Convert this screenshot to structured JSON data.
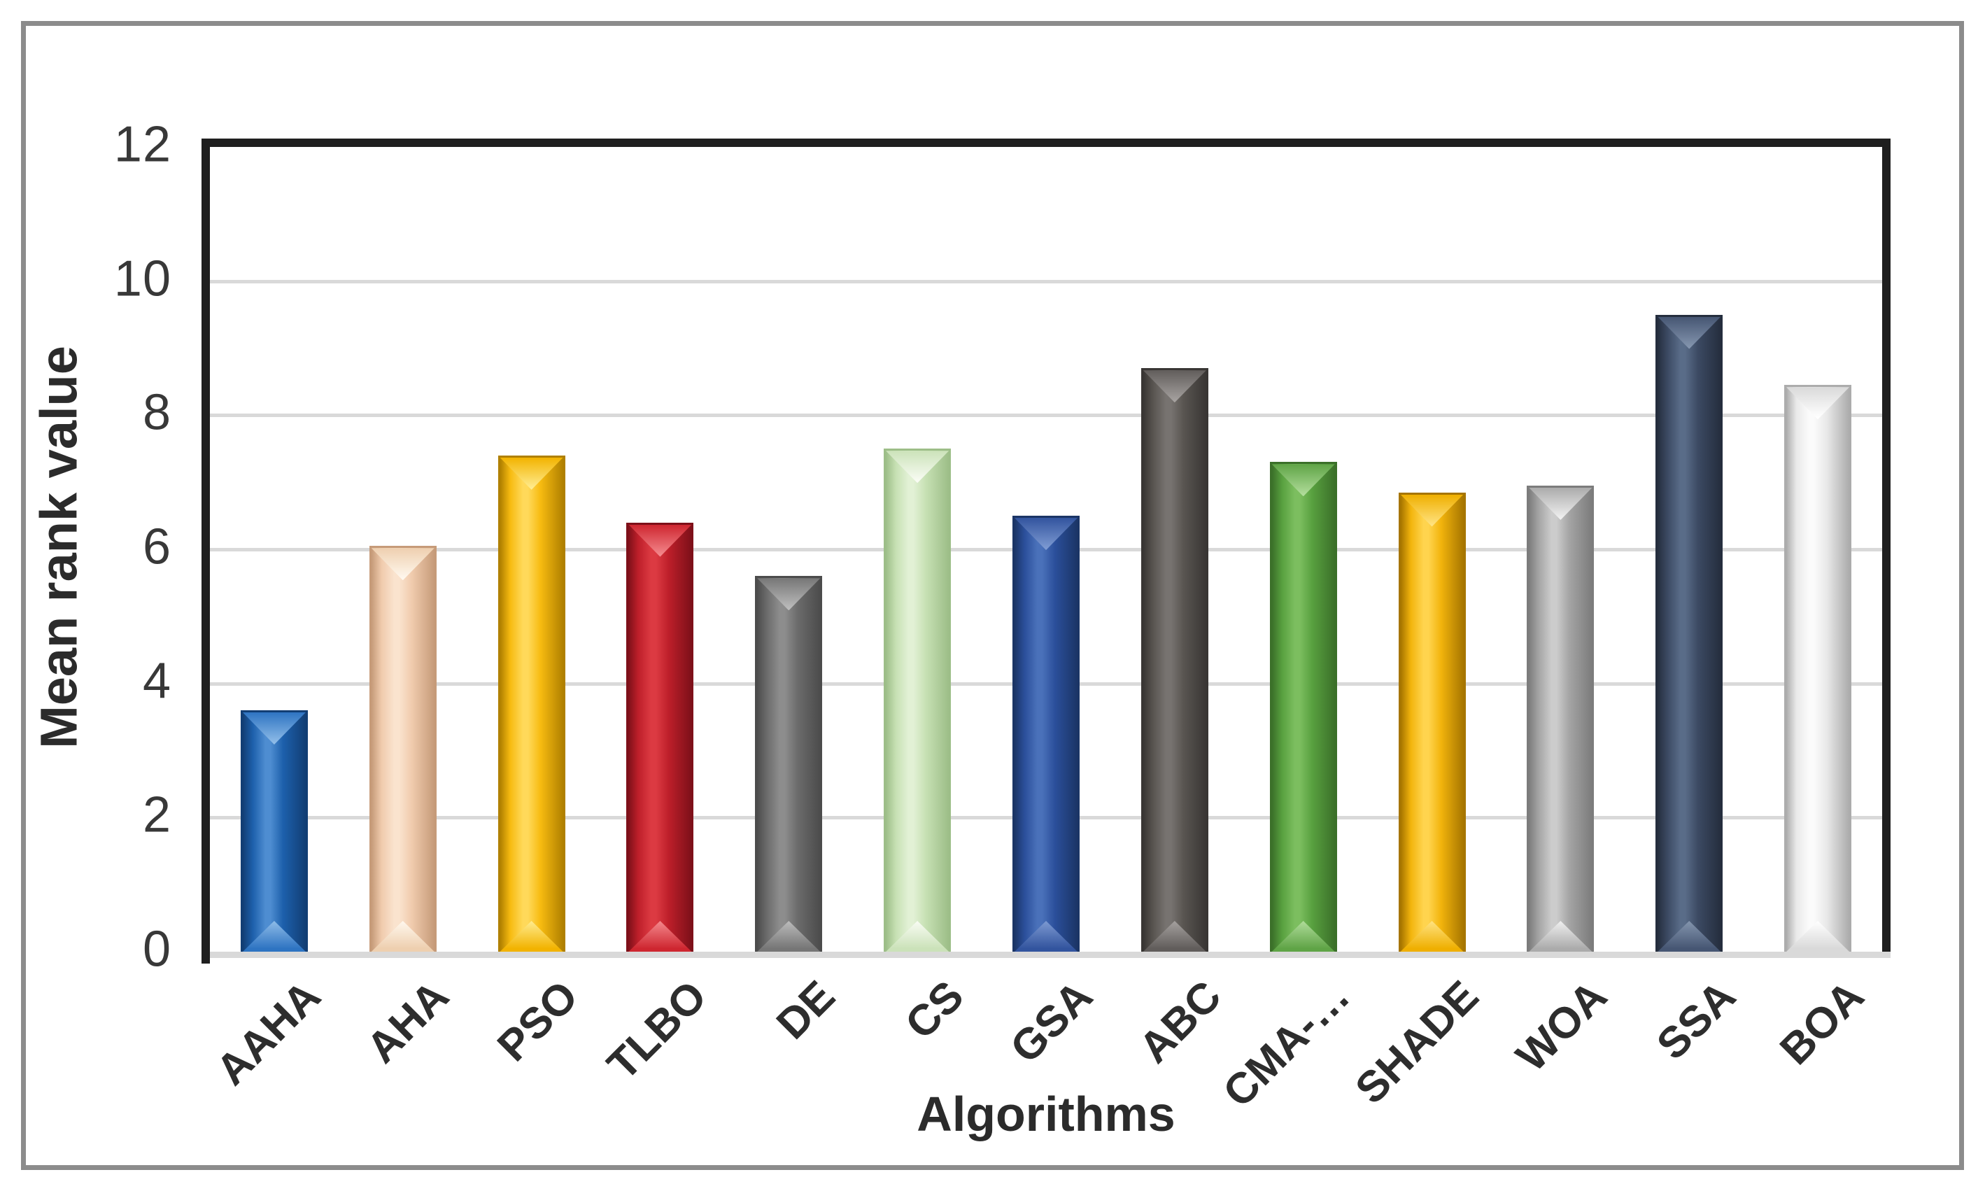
{
  "figure": {
    "background": "#FFFFFF",
    "frame_color": "#8C8C8C",
    "plot_border_color": "#1F1F1F",
    "gridline_color": "#D9D9D9",
    "baseline_color": "#D9D9D9",
    "tick_text_color": "#383838",
    "title_text_color": "#2B2B2B"
  },
  "chart_data": {
    "type": "bar",
    "title": "",
    "xlabel": "Algorithms",
    "ylabel": "Mean rank value",
    "categories": [
      "AAHA",
      "AHA",
      "PSO",
      "TLBO",
      "DE",
      "CS",
      "GSA",
      "ABC",
      "CMA-…",
      "SHADE",
      "WOA",
      "SSA",
      "BOA"
    ],
    "values": [
      3.6,
      6.05,
      7.4,
      6.4,
      5.6,
      7.5,
      6.5,
      8.7,
      7.3,
      6.85,
      6.95,
      9.5,
      8.45
    ],
    "ylim": [
      0,
      12
    ],
    "yticks": [
      0,
      2,
      4,
      6,
      8,
      10,
      12
    ],
    "ytick_labels": [
      "0",
      "2",
      "4",
      "6",
      "8",
      "10",
      "12"
    ],
    "grid": true,
    "legend": false,
    "bar_style": "beveled-3d",
    "bar_styles": [
      {
        "category": "AAHA",
        "edge": "#123E74",
        "main": "#1D60AC",
        "light": "#4E8DD1",
        "notch_top": "#2E74C2",
        "notch_tip": "#8FBCE8"
      },
      {
        "category": "AHA",
        "edge": "#C69B79",
        "main": "#F0CBAD",
        "light": "#FAE3CE",
        "notch_top": "#EECFAF",
        "notch_tip": "#FFF8EE"
      },
      {
        "category": "PSO",
        "edge": "#B08000",
        "main": "#F7BB10",
        "light": "#FFD95A",
        "notch_top": "#F2B300",
        "notch_tip": "#FFEC90"
      },
      {
        "category": "TLBO",
        "edge": "#7E1019",
        "main": "#BE1F2A",
        "light": "#DC3A42",
        "notch_top": "#CE2630",
        "notch_tip": "#F4898D"
      },
      {
        "category": "DE",
        "edge": "#4C4C4C",
        "main": "#6C6C6C",
        "light": "#8D8D8D",
        "notch_top": "#767676",
        "notch_tip": "#BCBCBC"
      },
      {
        "category": "CS",
        "edge": "#9DBE88",
        "main": "#C6E0B3",
        "light": "#E2F1D5",
        "notch_top": "#CBE2B9",
        "notch_tip": "#F9FCF4"
      },
      {
        "category": "GSA",
        "edge": "#1B3566",
        "main": "#2B4F9B",
        "light": "#4A71BA",
        "notch_top": "#32549E",
        "notch_tip": "#7D9AD2"
      },
      {
        "category": "ABC",
        "edge": "#393634",
        "main": "#595551",
        "light": "#777370",
        "notch_top": "#615D5B",
        "notch_tip": "#A5A19F"
      },
      {
        "category": "CMA-…",
        "edge": "#3B7029",
        "main": "#58A03F",
        "light": "#7CBE5F",
        "notch_top": "#5FA446",
        "notch_tip": "#B0DC9A"
      },
      {
        "category": "SHADE",
        "edge": "#A67500",
        "main": "#F2B40C",
        "light": "#FFD44E",
        "notch_top": "#EFAF00",
        "notch_tip": "#FFE382"
      },
      {
        "category": "WOA",
        "edge": "#7C7C7C",
        "main": "#A5A5A5",
        "light": "#CCCCCC",
        "notch_top": "#ABABAB",
        "notch_tip": "#F0F0F0"
      },
      {
        "category": "SSA",
        "edge": "#252E3E",
        "main": "#3C4A63",
        "light": "#596C88",
        "notch_top": "#465673",
        "notch_tip": "#8495AE"
      },
      {
        "category": "BOA",
        "edge": "#ACACAC",
        "main": "#E9E9E9",
        "light": "#FBFBFB",
        "notch_top": "#D9D9D9",
        "notch_tip": "#FFFFFF"
      }
    ]
  }
}
